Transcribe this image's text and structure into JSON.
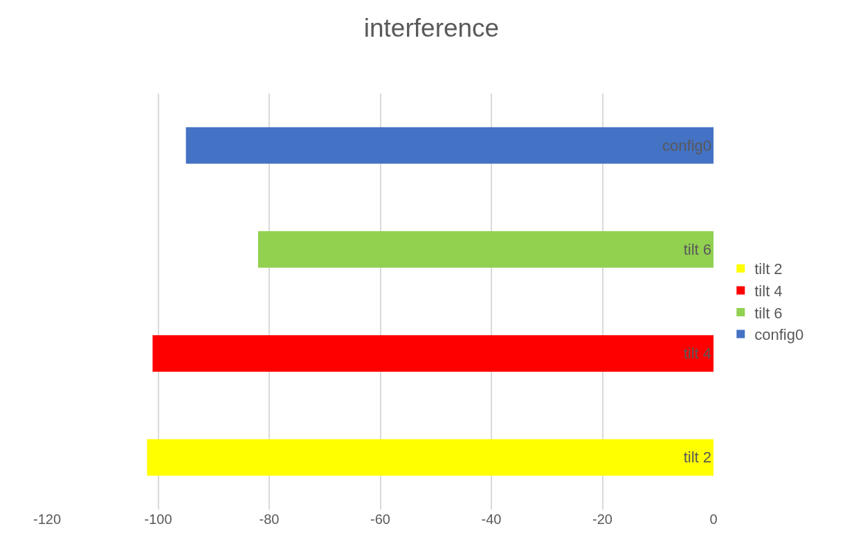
{
  "chart_data": {
    "type": "bar",
    "title": "interference",
    "orientation": "horizontal",
    "categories": [
      null,
      null,
      null,
      null
    ],
    "series": [
      {
        "name": "tilt 2",
        "color": "#ffff00",
        "values": [
          null,
          null,
          null,
          -102
        ],
        "value_labels": [
          null,
          null,
          null,
          "tilt 2"
        ]
      },
      {
        "name": "tilt 4",
        "color": "#ff0000",
        "values": [
          null,
          null,
          -101,
          null
        ],
        "value_labels": [
          null,
          null,
          "tilt 4",
          null
        ]
      },
      {
        "name": "tilt 6",
        "color": "#92d050",
        "values": [
          null,
          -82,
          null,
          null
        ],
        "value_labels": [
          null,
          "tilt 6",
          null,
          null
        ]
      },
      {
        "name": "config0",
        "color": "#4472c4",
        "values": [
          -95,
          null,
          null,
          null
        ],
        "value_labels": [
          "config0",
          null,
          null,
          null
        ]
      }
    ],
    "xlim": [
      -120,
      0
    ],
    "xticks": [
      -120,
      -100,
      -80,
      -60,
      -40,
      -20,
      0
    ],
    "grid": "x",
    "legend": "right"
  }
}
